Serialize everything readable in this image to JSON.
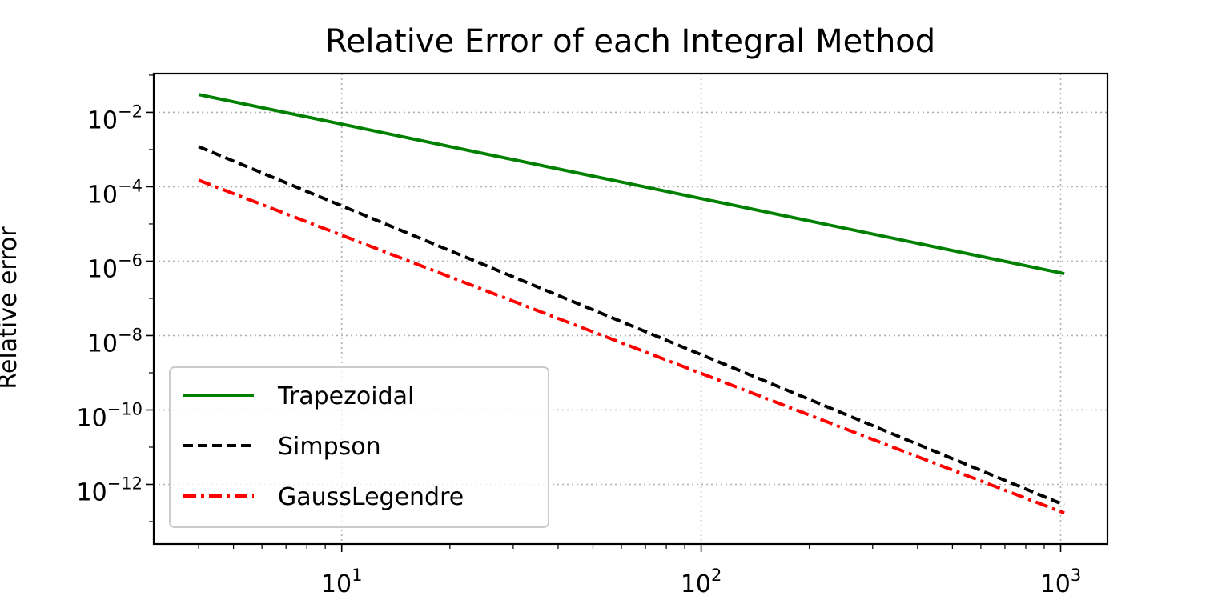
{
  "chart_data": {
    "type": "line",
    "title": "Relative Error of each Integral Method",
    "xlabel": "",
    "ylabel": "Relative error",
    "xscale": "log",
    "yscale": "log",
    "xlim": [
      3.0,
      1350
    ],
    "ylim": [
      2.5e-14,
      0.11
    ],
    "grid": true,
    "legend_position": "lower-left",
    "x_ticks": [
      {
        "base": "10",
        "exp": "1",
        "value": 10
      },
      {
        "base": "10",
        "exp": "2",
        "value": 100
      },
      {
        "base": "10",
        "exp": "3",
        "value": 1000
      }
    ],
    "y_ticks": [
      {
        "base": "10",
        "exp": "−2",
        "value": 0.01
      },
      {
        "base": "10",
        "exp": "−4",
        "value": 0.0001
      },
      {
        "base": "10",
        "exp": "−6",
        "value": 1e-06
      },
      {
        "base": "10",
        "exp": "−8",
        "value": 1e-08
      },
      {
        "base": "10",
        "exp": "−10",
        "value": 1e-10
      },
      {
        "base": "10",
        "exp": "−12",
        "value": 1e-12
      }
    ],
    "series": [
      {
        "name": "Trapezoidal",
        "color": "#008000",
        "dash": "solid",
        "x": [
          4,
          1024
        ],
        "y": [
          0.03,
          4.6e-07
        ]
      },
      {
        "name": "Simpson",
        "color": "#000000",
        "dash": "dashed",
        "x": [
          4,
          1024
        ],
        "y": [
          0.0012,
          2.8e-13
        ]
      },
      {
        "name": "GaussLegendre",
        "color": "#ff0000",
        "dash": "dashdot",
        "x": [
          4,
          1024
        ],
        "y": [
          0.00015,
          1.7e-13
        ]
      }
    ]
  }
}
